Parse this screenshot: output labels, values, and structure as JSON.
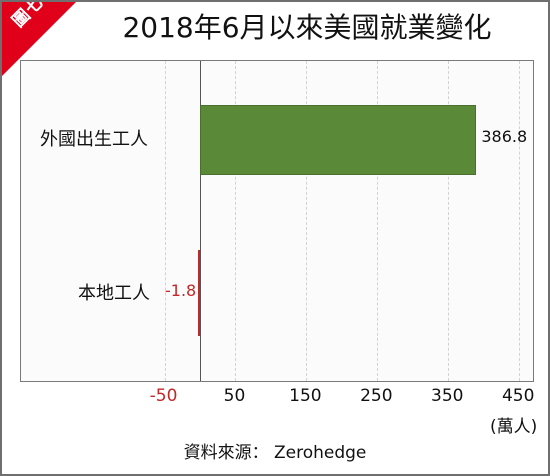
{
  "badge": "圖七",
  "title": "2018年6月以來美國就業變化",
  "source": "資料來源： Zerohedge",
  "chart_data": {
    "type": "bar",
    "orientation": "horizontal",
    "title": "2018年6月以來美國就業變化",
    "categories": [
      "外國出生工人",
      "本地工人"
    ],
    "values": [
      386.8,
      -1.8
    ],
    "value_labels": [
      "386.8",
      "-1.8"
    ],
    "bar_colors": [
      "#5a8a37",
      "#c0282a"
    ],
    "xticks": [
      "-50",
      "50",
      "150",
      "250",
      "350",
      "450"
    ],
    "xtick_values": [
      -50,
      50,
      150,
      250,
      350,
      450
    ],
    "xtick_colors": [
      "#c0282a",
      "#111111",
      "#111111",
      "#111111",
      "#111111",
      "#111111"
    ],
    "xunit": "(萬人)",
    "xlim": [
      -100,
      470
    ],
    "grid": true
  }
}
